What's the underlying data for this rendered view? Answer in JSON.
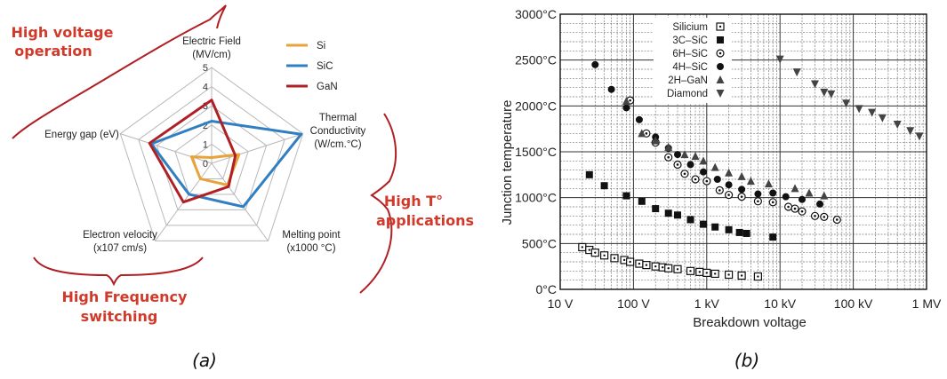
{
  "chart_data": [
    {
      "type": "radar",
      "axes": [
        {
          "label_lines": [
            "Electric Field",
            "(MV/cm)"
          ]
        },
        {
          "label_lines": [
            "Thermal",
            "Conductivity",
            "(W/cm.°C)"
          ]
        },
        {
          "label_lines": [
            "Melting point",
            "(x1000 °C)"
          ]
        },
        {
          "label_lines": [
            "Electron velocity",
            "(x107 cm/s)"
          ]
        },
        {
          "label_lines": [
            "Energy gap (eV)"
          ]
        }
      ],
      "rlim": [
        0,
        5
      ],
      "ticks": [
        "0",
        "1",
        "2",
        "3",
        "4",
        "5"
      ],
      "series": [
        {
          "name": "Si",
          "color": "#e8a33a",
          "values": [
            0.3,
            1.5,
            1.4,
            1.0,
            1.1
          ]
        },
        {
          "name": "SiC",
          "color": "#2f7fc2",
          "values": [
            2.2,
            4.9,
            2.8,
            2.0,
            3.3
          ]
        },
        {
          "name": "GaN",
          "color": "#b01f24",
          "values": [
            3.3,
            1.3,
            1.5,
            2.5,
            3.4
          ]
        }
      ],
      "annotations": {
        "high_voltage": [
          "High voltage",
          "operation"
        ],
        "high_t": [
          "High T°",
          "applications"
        ],
        "high_freq": [
          "High Frequency",
          "switching"
        ]
      },
      "caption": "(a)"
    },
    {
      "type": "scatter",
      "xscale": "log",
      "xlabel": "Breakdown voltage",
      "ylabel": "Junction temperature",
      "xlim": [
        10,
        1000000
      ],
      "ylim": [
        0,
        3000
      ],
      "xticks": [
        {
          "v": 10,
          "label": "10  V"
        },
        {
          "v": 100,
          "label": "100  V"
        },
        {
          "v": 1000,
          "label": "1 kV"
        },
        {
          "v": 10000,
          "label": "10 kV"
        },
        {
          "v": 100000,
          "label": "100 kV"
        },
        {
          "v": 1000000,
          "label": "1 MV"
        }
      ],
      "yticks": [
        {
          "v": 0,
          "label": "0°C"
        },
        {
          "v": 500,
          "label": "500°C"
        },
        {
          "v": 1000,
          "label": "1000°C"
        },
        {
          "v": 1500,
          "label": "1500°C"
        },
        {
          "v": 2000,
          "label": "2000°C"
        },
        {
          "v": 2500,
          "label": "2500°C"
        },
        {
          "v": 3000,
          "label": "3000°C"
        }
      ],
      "series": [
        {
          "name": "Silicium",
          "marker": "square-dot",
          "points": [
            [
              20,
              460
            ],
            [
              25,
              430
            ],
            [
              30,
              400
            ],
            [
              40,
              370
            ],
            [
              55,
              340
            ],
            [
              75,
              320
            ],
            [
              90,
              300
            ],
            [
              120,
              280
            ],
            [
              150,
              265
            ],
            [
              200,
              250
            ],
            [
              250,
              240
            ],
            [
              300,
              230
            ],
            [
              400,
              220
            ],
            [
              600,
              200
            ],
            [
              800,
              190
            ],
            [
              1000,
              180
            ],
            [
              1300,
              170
            ],
            [
              2000,
              160
            ],
            [
              3000,
              150
            ],
            [
              5000,
              140
            ]
          ]
        },
        {
          "name": "3C–SiC",
          "marker": "square",
          "points": [
            [
              25,
              1250
            ],
            [
              40,
              1130
            ],
            [
              80,
              1020
            ],
            [
              130,
              960
            ],
            [
              200,
              880
            ],
            [
              300,
              830
            ],
            [
              400,
              810
            ],
            [
              600,
              760
            ],
            [
              900,
              710
            ],
            [
              1300,
              680
            ],
            [
              2000,
              650
            ],
            [
              2800,
              620
            ],
            [
              3500,
              610
            ],
            [
              8000,
              570
            ]
          ]
        },
        {
          "name": "6H–SiC",
          "marker": "circle-dot",
          "points": [
            [
              90,
              2060
            ],
            [
              150,
              1700
            ],
            [
              200,
              1600
            ],
            [
              300,
              1440
            ],
            [
              400,
              1360
            ],
            [
              500,
              1260
            ],
            [
              700,
              1200
            ],
            [
              1000,
              1180
            ],
            [
              1500,
              1080
            ],
            [
              2000,
              1030
            ],
            [
              3000,
              1010
            ],
            [
              5000,
              960
            ],
            [
              8000,
              950
            ],
            [
              13000,
              900
            ],
            [
              16000,
              880
            ],
            [
              20000,
              850
            ],
            [
              30000,
              800
            ],
            [
              40000,
              790
            ],
            [
              60000,
              760
            ]
          ]
        },
        {
          "name": "4H–SiC",
          "marker": "circle",
          "points": [
            [
              30,
              2450
            ],
            [
              50,
              2180
            ],
            [
              80,
              1980
            ],
            [
              120,
              1850
            ],
            [
              200,
              1660
            ],
            [
              300,
              1540
            ],
            [
              400,
              1470
            ],
            [
              600,
              1360
            ],
            [
              900,
              1280
            ],
            [
              1400,
              1200
            ],
            [
              2000,
              1140
            ],
            [
              3000,
              1090
            ],
            [
              5000,
              1040
            ],
            [
              8000,
              1050
            ],
            [
              12000,
              1010
            ],
            [
              20000,
              980
            ],
            [
              35000,
              930
            ]
          ]
        },
        {
          "name": "2H–GaN",
          "marker": "triangle",
          "points": [
            [
              80,
              2050
            ],
            [
              130,
              1700
            ],
            [
              200,
              1620
            ],
            [
              300,
              1550
            ],
            [
              500,
              1470
            ],
            [
              700,
              1450
            ],
            [
              900,
              1400
            ],
            [
              1300,
              1330
            ],
            [
              2000,
              1270
            ],
            [
              3000,
              1230
            ],
            [
              4000,
              1180
            ],
            [
              7000,
              1150
            ],
            [
              16000,
              1100
            ],
            [
              25000,
              1050
            ],
            [
              40000,
              1020
            ]
          ]
        },
        {
          "name": "Diamond",
          "marker": "triangle-down",
          "points": [
            [
              10000,
              2510
            ],
            [
              17000,
              2370
            ],
            [
              30000,
              2240
            ],
            [
              40000,
              2150
            ],
            [
              50000,
              2130
            ],
            [
              80000,
              2030
            ],
            [
              120000,
              1970
            ],
            [
              180000,
              1930
            ],
            [
              250000,
              1870
            ],
            [
              400000,
              1800
            ],
            [
              600000,
              1730
            ],
            [
              800000,
              1670
            ]
          ]
        }
      ],
      "caption": "(b)"
    }
  ]
}
